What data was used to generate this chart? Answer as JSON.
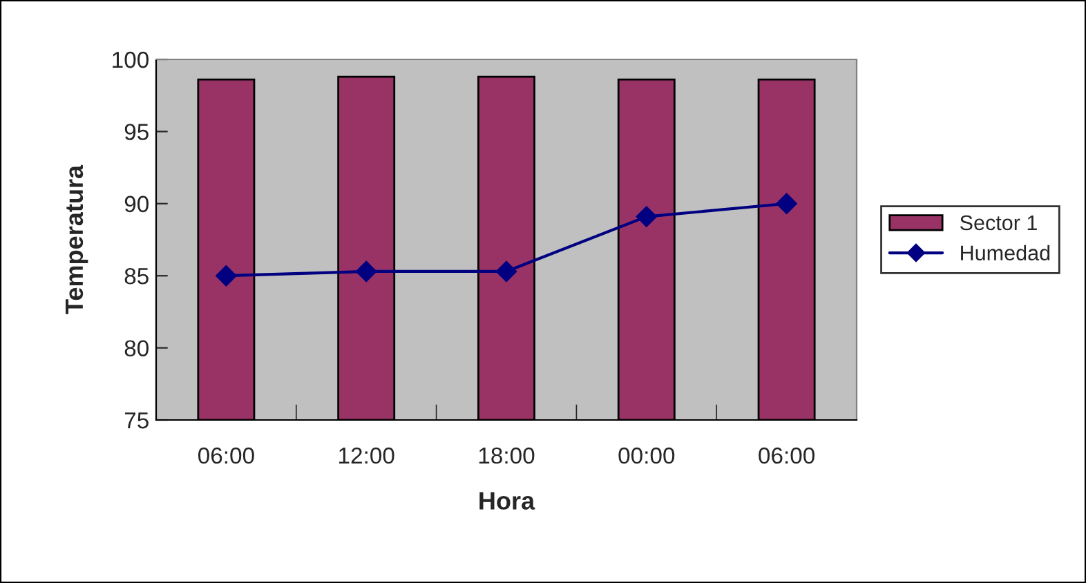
{
  "chart_data": {
    "type": "bar",
    "xlabel": "Hora",
    "ylabel": "Temperatura",
    "categories": [
      "06:00",
      "12:00",
      "18:00",
      "00:00",
      "06:00"
    ],
    "series": [
      {
        "name": "Sector 1",
        "color": "#993366",
        "values": [
          98.6,
          98.8,
          98.8,
          98.6,
          98.6
        ]
      },
      {
        "name": "Humedad",
        "type": "line",
        "color": "#000080",
        "marker": "diamond",
        "values": [
          85,
          85.3,
          85.3,
          89.1,
          90
        ]
      }
    ],
    "ylim": [
      75,
      100
    ],
    "yticks": [
      75,
      80,
      85,
      90,
      95,
      100
    ],
    "grid": false,
    "legend": "right"
  }
}
